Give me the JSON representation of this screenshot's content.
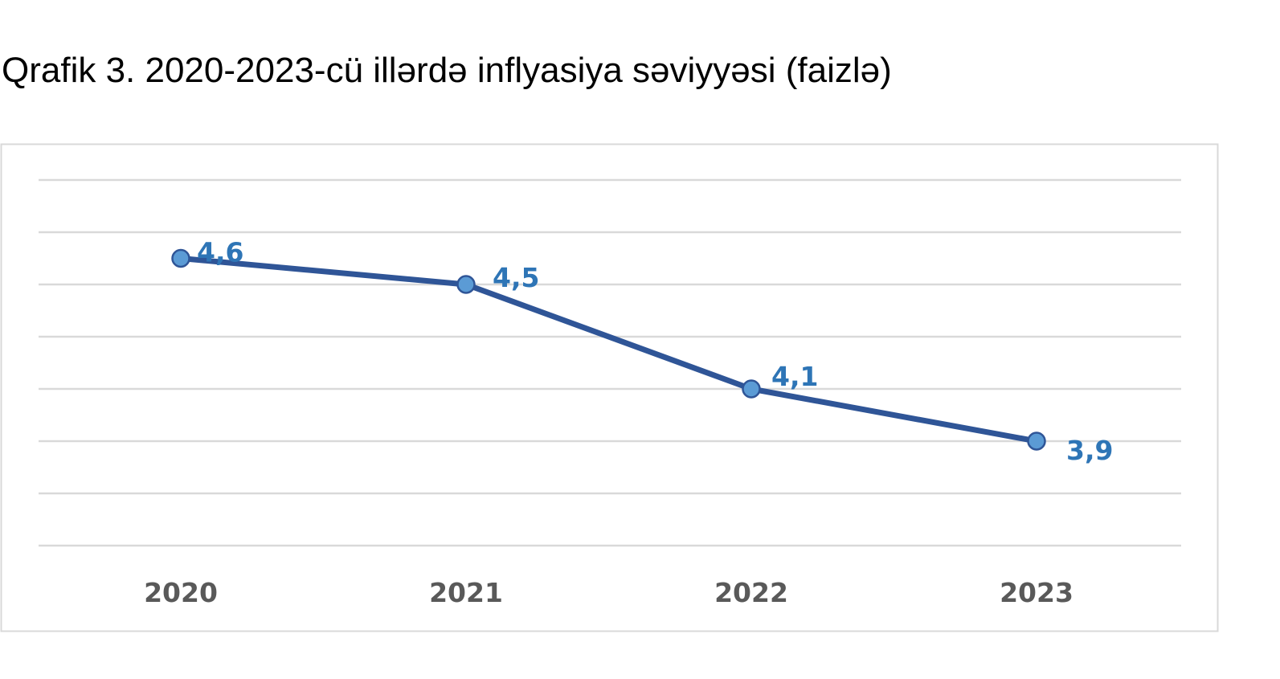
{
  "chart_data": {
    "type": "line",
    "title": "Qrafik 3. 2020-2023-cü illərdə inflyasiya səviyyəsi (faizlə)",
    "categories": [
      "2020",
      "2021",
      "2022",
      "2023"
    ],
    "series": [
      {
        "values": [
          4.6,
          4.5,
          4.1,
          3.9
        ],
        "data_labels": [
          "4,6",
          "4,5",
          "4,1",
          "3,9"
        ]
      }
    ],
    "ylim": [
      3.5,
      4.8
    ],
    "y_gridlines": [
      3.5,
      3.7,
      3.9,
      4.1,
      4.3,
      4.5,
      4.7,
      4.9
    ],
    "grid": true,
    "legend": "none",
    "colors": {
      "line": "#2f5597",
      "marker_fill": "#5b9bd5",
      "marker_stroke": "#2f5597",
      "data_label": "#2e75b6",
      "gridline": "#d9d9d9",
      "tick_label": "#595959",
      "frame": "#d9d9d9"
    }
  }
}
